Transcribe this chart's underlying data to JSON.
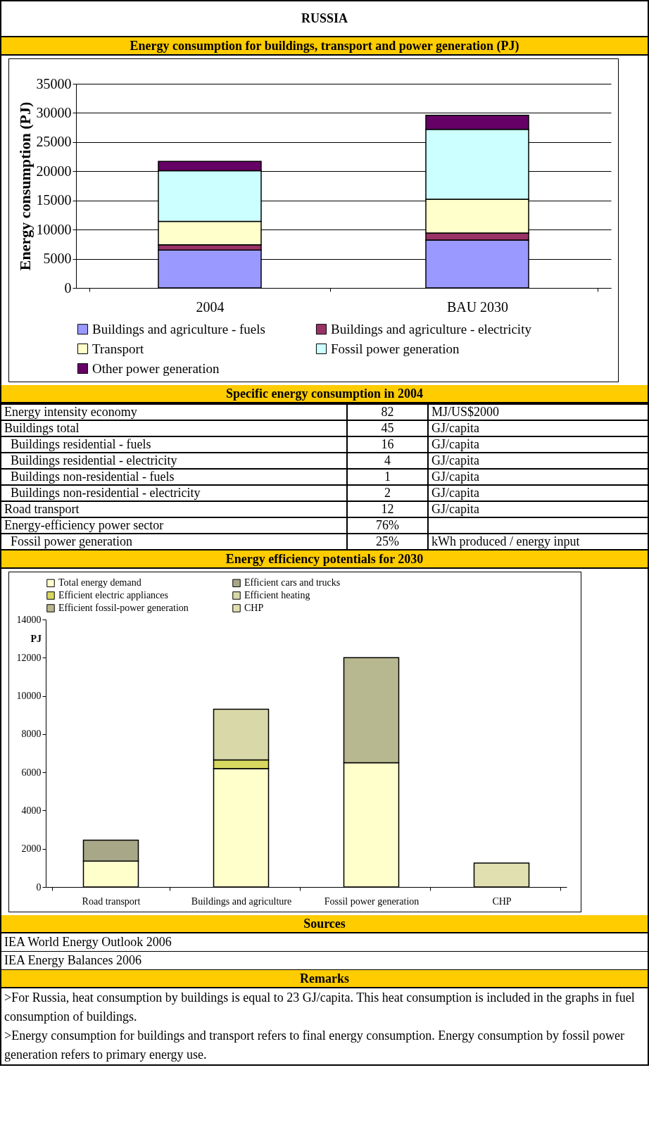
{
  "chart_data": [
    {
      "type": "bar",
      "title": "RUSSIA",
      "subtitle": "Energy consumption for buildings, transport and power generation (PJ)",
      "ylabel": "Energy consumption (PJ)",
      "categories": [
        "2004",
        "BAU 2030"
      ],
      "stacked": true,
      "ylim": [
        0,
        35000
      ],
      "yticks": [
        0,
        5000,
        10000,
        15000,
        20000,
        25000,
        30000,
        35000
      ],
      "grid": "y",
      "legend": "bottom",
      "series": [
        {
          "name": "Buildings and agriculture - fuels",
          "color": "#9999ff",
          "values": [
            6500,
            8200
          ]
        },
        {
          "name": "Buildings and agriculture - electricity",
          "color": "#993366",
          "values": [
            900,
            1200
          ]
        },
        {
          "name": "Transport",
          "color": "#ffffcc",
          "values": [
            4000,
            5800
          ]
        },
        {
          "name": "Fossil power generation",
          "color": "#ccffff",
          "values": [
            8700,
            12000
          ]
        },
        {
          "name": "Other power generation",
          "color": "#660066",
          "values": [
            1600,
            2400
          ]
        }
      ]
    },
    {
      "type": "other",
      "title": "Specific energy consumption in 2004",
      "annotations": [
        "Energy intensity economy",
        "82",
        "MJ/US$2000",
        "Buildings total",
        "45",
        "GJ/capita",
        "  Buildings residential - fuels",
        "16",
        "GJ/capita",
        "  Buildings residential - electricity",
        "4",
        "GJ/capita",
        "  Buildings non-residential - fuels",
        "1",
        "GJ/capita",
        "  Buildings non-residential - electricity",
        "2",
        "GJ/capita",
        "Road transport",
        "12",
        "GJ/capita",
        "Energy-efficiency power sector",
        "76%",
        null,
        "  Fossil power generation",
        "25%",
        "kWh produced / energy input"
      ]
    },
    {
      "type": "bar",
      "title": "Energy efficiency potentials for 2030",
      "ylabel": "PJ",
      "categories": [
        "Road transport",
        "Buildings and agriculture",
        "Fossil power generation",
        "CHP"
      ],
      "stacked": true,
      "ylim": [
        0,
        14000
      ],
      "yticks": [
        0,
        2000,
        4000,
        6000,
        8000,
        10000,
        12000,
        14000
      ],
      "legend": "top",
      "series": [
        {
          "name": "Total energy demand",
          "color": "#ffffcc",
          "values": [
            1350,
            6200,
            6500,
            null
          ]
        },
        {
          "name": "Efficient cars and trucks",
          "color": "#a8a888",
          "values": [
            1100,
            null,
            null,
            null
          ]
        },
        {
          "name": "Efficient electric appliances",
          "color": "#d8d860",
          "values": [
            null,
            450,
            null,
            null
          ]
        },
        {
          "name": "Efficient heating",
          "color": "#d8d8a8",
          "values": [
            null,
            2650,
            null,
            null
          ]
        },
        {
          "name": "Efficient fossil-power generation",
          "color": "#b8b890",
          "values": [
            null,
            null,
            5500,
            null
          ]
        },
        {
          "name": "CHP",
          "color": "#e0e0b0",
          "values": [
            null,
            null,
            null,
            1250
          ]
        }
      ]
    },
    {
      "type": "other",
      "title": "Sources",
      "annotations": [
        "IEA World Energy Outlook 2006",
        "IEA Energy Balances 2006"
      ]
    },
    {
      "type": "other",
      "title": "Remarks",
      "annotations": [
        ">For Russia, heat consumption by buildings is equal to 23 GJ/capita. This heat consumption is included in the graphs in fuel consumption of buildings.",
        ">Energy consumption for buildings and transport refers to final energy consumption. Energy consumption by fossil power generation refers to primary energy use."
      ]
    }
  ]
}
